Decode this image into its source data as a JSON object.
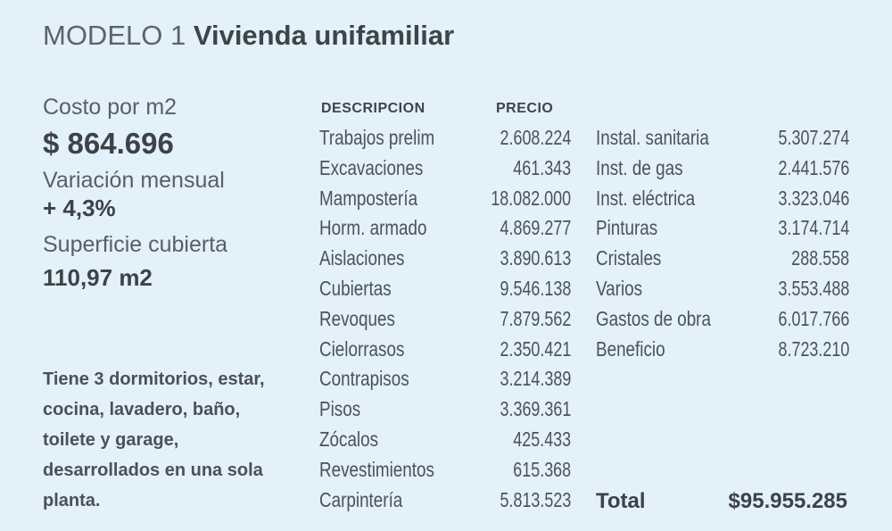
{
  "title": {
    "prefix": "MODELO 1",
    "name": "Vivienda unifamiliar"
  },
  "summary": {
    "cost_label": "Costo por m2",
    "cost_value": "$ 864.696",
    "variation_label": "Variación mensual",
    "variation_value": "+ 4,3%",
    "surface_label": "Superficie cubierta",
    "surface_value": "110,97 m2",
    "description": "Tiene 3 dormitorios, estar, cocina, lavadero, baño, toilete y garage, desarrollados en una sola planta."
  },
  "table": {
    "col_description": "DESCRIPCION",
    "col_price": "PRECIO",
    "left": [
      {
        "name": "Trabajos prelim",
        "price": "2.608.224"
      },
      {
        "name": "Excavaciones",
        "price": "461.343"
      },
      {
        "name": "Mampostería",
        "price": "18.082.000"
      },
      {
        "name": "Horm. armado",
        "price": "4.869.277"
      },
      {
        "name": "Aislaciones",
        "price": "3.890.613"
      },
      {
        "name": "Cubiertas",
        "price": "9.546.138"
      },
      {
        "name": "Revoques",
        "price": "7.879.562"
      },
      {
        "name": "Cielorrasos",
        "price": "2.350.421"
      },
      {
        "name": "Contrapisos",
        "price": "3.214.389"
      },
      {
        "name": "Pisos",
        "price": "3.369.361"
      },
      {
        "name": "Zócalos",
        "price": "425.433"
      },
      {
        "name": "Revestimientos",
        "price": "615.368"
      },
      {
        "name": "Carpintería",
        "price": "5.813.523"
      }
    ],
    "right": [
      {
        "name": "Instal. sanitaria",
        "price": "5.307.274"
      },
      {
        "name": "Inst. de gas",
        "price": "2.441.576"
      },
      {
        "name": "Inst. eléctrica",
        "price": "3.323.046"
      },
      {
        "name": "Pinturas",
        "price": "3.174.714"
      },
      {
        "name": "Cristales",
        "price": "288.558"
      },
      {
        "name": "Varios",
        "price": "3.553.488"
      },
      {
        "name": "Gastos de obra",
        "price": "6.017.766"
      },
      {
        "name": "Beneficio",
        "price": "8.723.210"
      }
    ],
    "total_label": "Total",
    "total_value": "$95.955.285"
  }
}
